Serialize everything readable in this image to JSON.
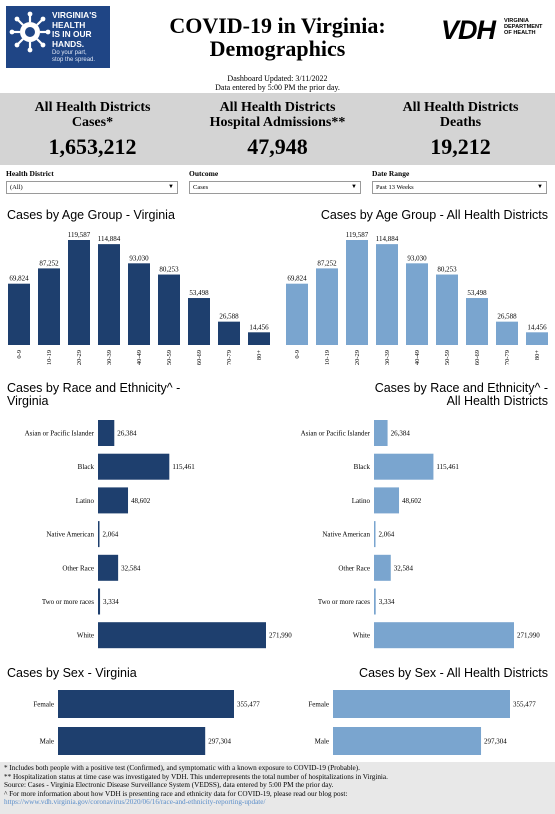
{
  "logo": {
    "text": "VIRGINIA'S\nHEALTH\nIS IN OUR\nHANDS.",
    "sub": "Do your part,\nstop the spread."
  },
  "title": "COVID-19 in Virginia:\nDemographics",
  "vdh": {
    "mark": "VDH",
    "org": "VIRGINIA\nDEPARTMENT\nOF HEALTH"
  },
  "updated": {
    "line1": "Dashboard Updated: 3/11/2022",
    "line2": "Data entered by 5:00 PM the prior day."
  },
  "kpis": [
    {
      "label": "All Health Districts\nCases*",
      "value": "1,653,212"
    },
    {
      "label": "All Health Districts\nHospital Admissions**",
      "value": "47,948"
    },
    {
      "label": "All Health Districts\nDeaths",
      "value": "19,212"
    }
  ],
  "filters": [
    {
      "label": "Health District",
      "value": "(All)"
    },
    {
      "label": "Outcome",
      "value": "Cases"
    },
    {
      "label": "Date Range",
      "value": "Past 13 Weeks"
    }
  ],
  "colors": {
    "dark": "#1e3f6e",
    "light": "#7aa5cf",
    "band": "#d4d4d4",
    "footer": "#e8e8e8",
    "link": "#5b8ec9",
    "logo": "#1f4585"
  },
  "sections": {
    "age_va": "Cases by Age Group - Virginia",
    "age_all": "Cases by Age Group - All Health Districts",
    "race_va": "Cases by Race and Ethnicity^ -\nVirginia",
    "race_all": "Cases by Race and Ethnicity^ -\nAll Health Districts",
    "sex_va": "Cases by Sex - Virginia",
    "sex_all": "Cases by Sex - All Health Districts"
  },
  "chart_data": [
    {
      "type": "bar",
      "name": "age_va",
      "categories": [
        "0-9",
        "10-19",
        "20-29",
        "30-39",
        "40-49",
        "50-59",
        "60-69",
        "70-79",
        "80+"
      ],
      "values": [
        69824,
        87252,
        119587,
        114884,
        93030,
        80253,
        53498,
        26588,
        14456
      ],
      "labels": [
        "69,824",
        "87,252",
        "119,587",
        "114,884",
        "93,030",
        "80,253",
        "53,498",
        "26,588",
        "14,456"
      ],
      "ylim": [
        0,
        119587
      ]
    },
    {
      "type": "bar",
      "name": "age_all",
      "categories": [
        "0-9",
        "10-19",
        "20-29",
        "30-39",
        "40-49",
        "50-59",
        "60-69",
        "70-79",
        "80+"
      ],
      "values": [
        69824,
        87252,
        119587,
        114884,
        93030,
        80253,
        53498,
        26588,
        14456
      ],
      "labels": [
        "69,824",
        "87,252",
        "119,587",
        "114,884",
        "93,030",
        "80,253",
        "53,498",
        "26,588",
        "14,456"
      ],
      "ylim": [
        0,
        119587
      ]
    },
    {
      "type": "bar",
      "orientation": "horizontal",
      "name": "race_va",
      "categories": [
        "Asian or Pacific Islander",
        "Black",
        "Latino",
        "Native American",
        "Other Race",
        "Two or more races",
        "White"
      ],
      "values": [
        26384,
        115461,
        48602,
        2064,
        32584,
        3334,
        271990
      ],
      "labels": [
        "26,384",
        "115,461",
        "48,602",
        "2,064",
        "32,584",
        "3,334",
        "271,990"
      ],
      "xlim": [
        0,
        271990
      ]
    },
    {
      "type": "bar",
      "orientation": "horizontal",
      "name": "race_all",
      "categories": [
        "Asian or Pacific Islander",
        "Black",
        "Latino",
        "Native American",
        "Other Race",
        "Two or more races",
        "White"
      ],
      "values": [
        26384,
        115461,
        48602,
        2064,
        32584,
        3334,
        271990
      ],
      "labels": [
        "26,384",
        "115,461",
        "48,602",
        "2,064",
        "32,584",
        "3,334",
        "271,990"
      ],
      "xlim": [
        0,
        271990
      ]
    },
    {
      "type": "bar",
      "orientation": "horizontal",
      "name": "sex_va",
      "categories": [
        "Female",
        "Male"
      ],
      "values": [
        355477,
        297304
      ],
      "labels": [
        "355,477",
        "297,304"
      ],
      "xlim": [
        0,
        355477
      ]
    },
    {
      "type": "bar",
      "orientation": "horizontal",
      "name": "sex_all",
      "categories": [
        "Female",
        "Male"
      ],
      "values": [
        355477,
        297304
      ],
      "labels": [
        "355,477",
        "297,304"
      ],
      "xlim": [
        0,
        355477
      ]
    }
  ],
  "footer": {
    "line1": "* Includes both people with a positive test (Confirmed), and symptomatic with a known exposure to COVID-19 (Probable).",
    "line2": "** Hospitalization status at time case was investigated by VDH. This underrepresents the total number of hospitalizations in Virginia.",
    "line3": "Source:  Cases - Virginia Electronic Disease Surveillance System (VEDSS), data entered by 5:00 PM the prior day.",
    "line4": "^ For more information about how VDH is presenting race and ethnicity data for COVID-19, please read our blog post:",
    "link": "https://www.vdh.virginia.gov/coronavirus/2020/06/16/race-and-ethnicity-reporting-update/"
  }
}
